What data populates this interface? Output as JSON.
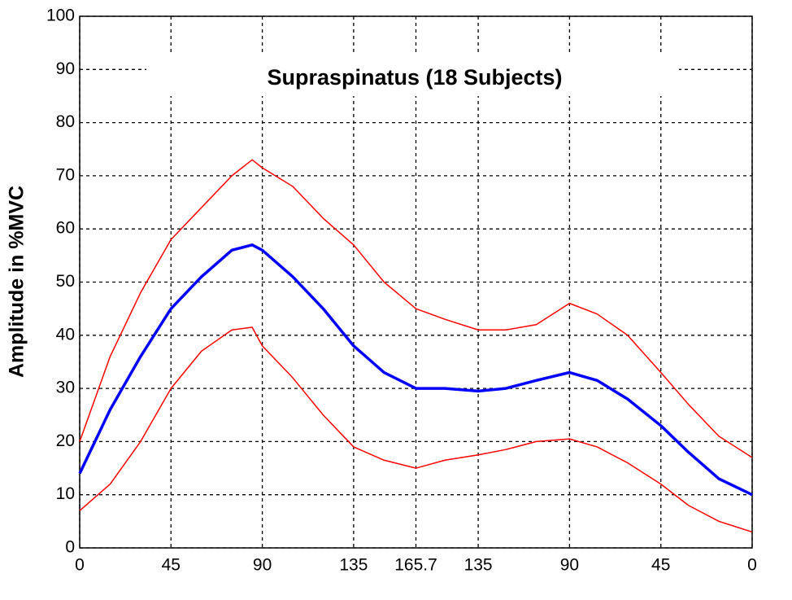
{
  "chart_data": {
    "type": "line",
    "title": "Supraspinatus (18 Subjects)",
    "y_label": "Amplitude in %MVC",
    "x": [
      0,
      15,
      30,
      45,
      60,
      75,
      85,
      90,
      105,
      120,
      135,
      150,
      165.7,
      180,
      196.4,
      210,
      225,
      241.4,
      255,
      270,
      286.4,
      300,
      315,
      331.4
    ],
    "series": [
      {
        "color": "#ff0000",
        "values": [
          20,
          36,
          48,
          58,
          64,
          70,
          73,
          71.5,
          68,
          62,
          57,
          50,
          45,
          43,
          41,
          41,
          42,
          46,
          44,
          40,
          33,
          27,
          21,
          17
        ]
      },
      {
        "color": "#0000ff",
        "values": [
          14,
          26,
          36,
          45,
          51,
          56,
          57,
          56,
          51,
          45,
          38,
          33,
          30,
          30,
          29.5,
          30,
          31.5,
          33,
          31.5,
          28,
          23,
          18,
          13,
          10
        ]
      },
      {
        "color": "#ff0000",
        "values": [
          7,
          12,
          20,
          30,
          37,
          41,
          41.5,
          38,
          32,
          25,
          19,
          16.5,
          15,
          16.5,
          17.5,
          18.5,
          20,
          20.5,
          19,
          16,
          12,
          8,
          5,
          3
        ]
      }
    ],
    "xlim": [
      0,
      331.4
    ],
    "xticks": [
      0,
      45,
      90,
      135,
      165.7,
      {
        "value": 196.4,
        "label": "135"
      },
      {
        "value": 241.4,
        "label": "90"
      },
      {
        "value": 286.4,
        "label": "45"
      },
      {
        "value": 331.4,
        "label": "0"
      }
    ],
    "ylim": [
      0,
      100
    ],
    "yticks": [
      0,
      10,
      20,
      30,
      40,
      50,
      60,
      70,
      80,
      90,
      100
    ],
    "grid": true
  }
}
